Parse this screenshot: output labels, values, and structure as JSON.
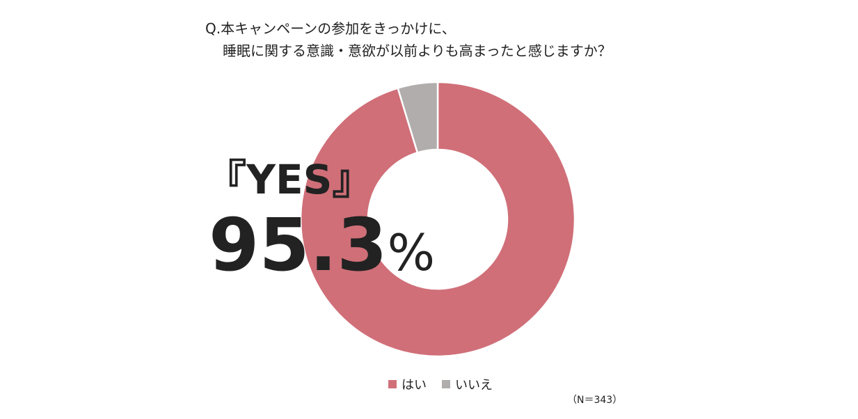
{
  "chart_data": {
    "type": "donut",
    "title": [
      "Q.本キャンペーンの参加をきっかけに、",
      "睡眠に関する意識・意欲が以前よりも高まったと感じますか？"
    ],
    "categories": [
      "はい",
      "いいえ"
    ],
    "values": [
      95.3,
      4.7
    ],
    "colors": [
      "#d06f78",
      "#b0adac"
    ],
    "annotations": [
      "『YES』",
      "95.3%"
    ],
    "note": "（N＝343）"
  }
}
